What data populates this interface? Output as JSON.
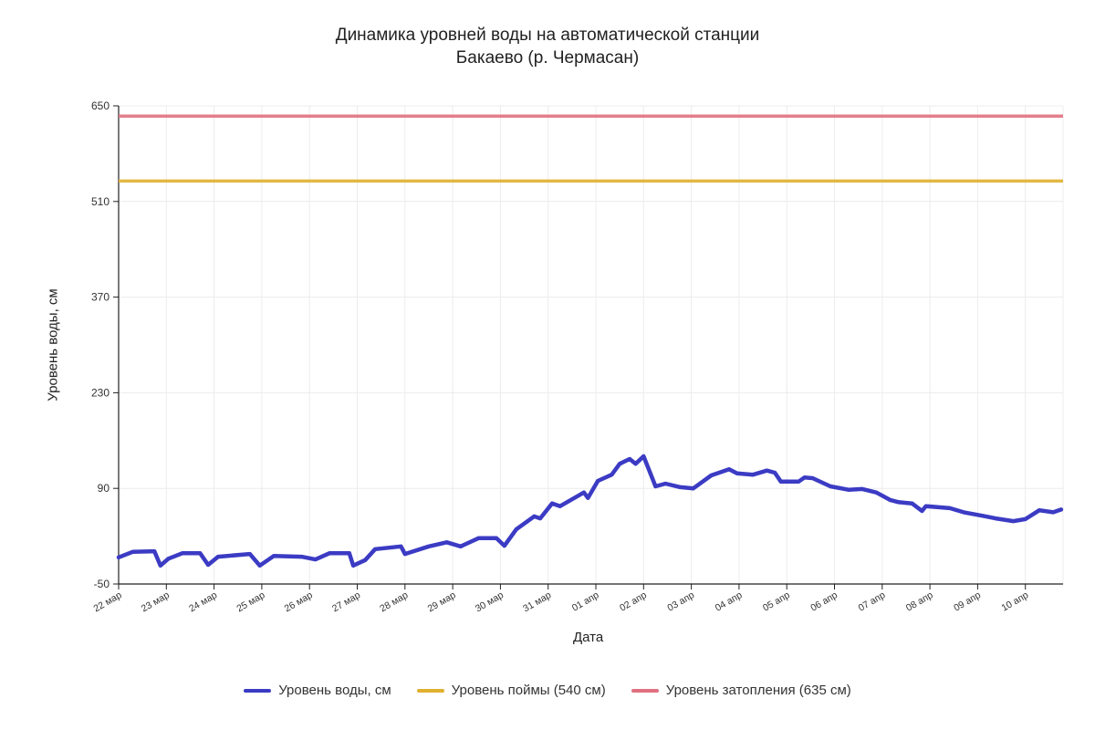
{
  "chart_data": {
    "type": "line",
    "title": "Динамика уровней воды на автоматической станции",
    "subtitle": "Бакаево (р. Чермасан)",
    "xlabel": "Дата",
    "ylabel": "Уровень воды, см",
    "ylim": [
      -50,
      650
    ],
    "yticks": [
      -50,
      90,
      230,
      370,
      510,
      650
    ],
    "xlim": [
      "03-22 00:00",
      "04-10 19:00"
    ],
    "xticks": [
      "22 мар",
      "23 мар",
      "24 мар",
      "25 мар",
      "26 мар",
      "27 мар",
      "28 мар",
      "29 мар",
      "30 мар",
      "31 мар",
      "01 апр",
      "02 апр",
      "03 апр",
      "04 апр",
      "05 апр",
      "06 апр",
      "07 апр",
      "08 апр",
      "09 апр",
      "10 апр"
    ],
    "grid": true,
    "legend": "bottom",
    "series": [
      {
        "name": "Уровень воды, см",
        "color": "#3b3bc4",
        "x": [
          "03-22 00:00",
          "03-22 07:00",
          "03-22 18:00",
          "03-22 21:00",
          "03-23 01:00",
          "03-23 08:00",
          "03-23 17:00",
          "03-23 21:00",
          "03-24 02:00",
          "03-24 18:00",
          "03-24 23:00",
          "03-25 06:00",
          "03-25 20:00",
          "03-26 03:00",
          "03-26 10:00",
          "03-26 20:00",
          "03-26 22:00",
          "03-27 04:00",
          "03-27 09:00",
          "03-27 22:00",
          "03-28 00:00",
          "03-28 12:00",
          "03-28 21:00",
          "03-29 04:00",
          "03-29 13:00",
          "03-29 22:00",
          "03-30 02:00",
          "03-30 08:00",
          "03-30 17:00",
          "03-30 20:00",
          "03-31 02:00",
          "03-31 06:00",
          "03-31 18:00",
          "03-31 20:00",
          "04-01 01:00",
          "04-01 08:00",
          "04-01 12:00",
          "04-01 17:00",
          "04-01 20:00",
          "04-02 00:00",
          "04-02 06:00",
          "04-02 11:00",
          "04-02 18:00",
          "04-03 01:00",
          "04-03 10:00",
          "04-03 19:00",
          "04-03 23:00",
          "04-04 07:00",
          "04-04 14:00",
          "04-04 18:00",
          "04-04 21:00",
          "04-05 06:00",
          "04-05 09:00",
          "04-05 13:00",
          "04-05 22:00",
          "04-06 07:00",
          "04-06 14:00",
          "04-06 21:00",
          "04-07 04:00",
          "04-07 08:00",
          "04-07 15:00",
          "04-07 20:00",
          "04-07 22:00",
          "04-08 10:00",
          "04-08 17:00",
          "04-09 02:00",
          "04-09 09:00",
          "04-09 18:00",
          "04-10 00:00",
          "04-10 07:00",
          "04-10 14:00",
          "04-10 18:00"
        ],
        "y": [
          -11,
          -3,
          -2,
          -23,
          -13,
          -5,
          -5,
          -22,
          -10,
          -6,
          -23,
          -9,
          -10,
          -14,
          -5,
          -5,
          -23,
          -15,
          1,
          5,
          -6,
          5,
          11,
          5,
          17,
          17,
          6,
          30,
          49,
          46,
          68,
          64,
          84,
          76,
          101,
          110,
          126,
          133,
          126,
          137,
          93,
          97,
          92,
          90,
          109,
          118,
          112,
          110,
          116,
          113,
          100,
          100,
          106,
          105,
          93,
          88,
          89,
          84,
          73,
          70,
          68,
          57,
          64,
          61,
          55,
          50,
          46,
          42,
          45,
          58,
          55,
          59
        ]
      },
      {
        "name": "Уровень поймы (540 см)",
        "color": "#e0b030",
        "constant": 540
      },
      {
        "name": "Уровень затопления (635 см)",
        "color": "#e07080",
        "constant": 635
      }
    ]
  }
}
